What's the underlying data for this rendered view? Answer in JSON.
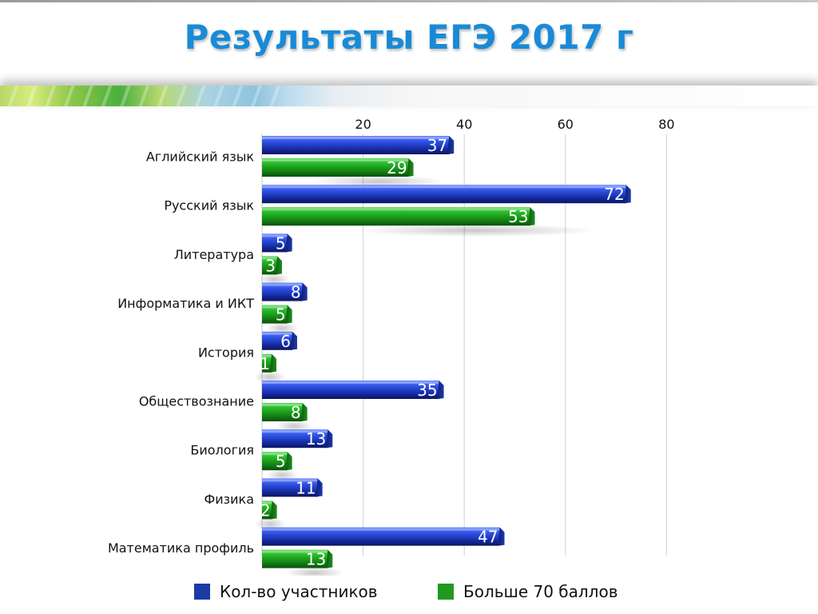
{
  "slide": {
    "title": "Результаты ЕГЭ 2017 г"
  },
  "colors": {
    "title": "#1a8ad6",
    "series_participants": "#1f3fbf",
    "series_over70": "#1e9a1e"
  },
  "chart_data": {
    "type": "bar",
    "orientation": "horizontal",
    "categories": [
      "Аглийский язык",
      "Русский язык",
      "Литература",
      "Информатика и ИКТ",
      "История",
      "Обществознание",
      "Биология",
      "Физика",
      "Математика профиль"
    ],
    "series": [
      {
        "name": "Кол-во участников",
        "values": [
          37,
          72,
          5,
          8,
          6,
          35,
          13,
          11,
          47
        ]
      },
      {
        "name": "Больше 70 баллов",
        "values": [
          29,
          53,
          3,
          5,
          1,
          8,
          5,
          2,
          13
        ]
      }
    ],
    "x_ticks": [
      "20",
      "40",
      "60",
      "80"
    ],
    "xlim": [
      0,
      85
    ],
    "grid": true,
    "legend_position": "bottom",
    "title": "",
    "xlabel": "",
    "ylabel": ""
  }
}
